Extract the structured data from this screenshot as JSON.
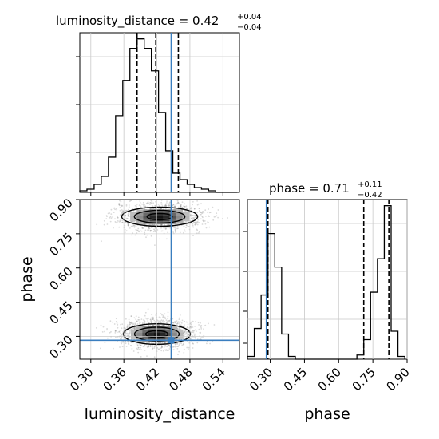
{
  "chart_data": {
    "type": "corner",
    "truth_color": "#3a7ebf",
    "grid": true,
    "parameters": [
      {
        "name": "luminosity_distance",
        "median": "0.42",
        "plus": "+0.04",
        "minus": "−0.04",
        "title_prefix": "luminosity_distance = ",
        "quantiles": [
          0.384,
          0.418,
          0.459
        ],
        "truth": 0.446,
        "range": [
          0.28,
          0.57
        ],
        "ticks": [
          "0.30",
          "0.36",
          "0.42",
          "0.48",
          "0.54"
        ],
        "hist_bins": [
          0.28,
          0.293,
          0.306,
          0.319,
          0.332,
          0.345,
          0.358,
          0.371,
          0.384,
          0.397,
          0.41,
          0.423,
          0.436,
          0.449,
          0.462,
          0.475,
          0.488,
          0.501,
          0.514,
          0.527,
          0.54,
          0.553,
          0.566
        ],
        "hist_counts": [
          1,
          2,
          5,
          10,
          22,
          48,
          70,
          90,
          96,
          90,
          76,
          50,
          26,
          12,
          8,
          5,
          3,
          2,
          1,
          0,
          0,
          0
        ]
      },
      {
        "name": "phase",
        "median": "0.71",
        "plus": "+0.11",
        "minus": "−0.42",
        "title_prefix": "phase = ",
        "quantiles": [
          0.29,
          0.71,
          0.82
        ],
        "truth": 0.283,
        "range": [
          0.2,
          0.9
        ],
        "ticks": [
          "0.30",
          "0.45",
          "0.60",
          "0.75",
          "0.90"
        ],
        "hist_bins": [
          0.2,
          0.23,
          0.26,
          0.29,
          0.32,
          0.35,
          0.38,
          0.41,
          0.44,
          0.47,
          0.5,
          0.53,
          0.56,
          0.59,
          0.62,
          0.65,
          0.68,
          0.71,
          0.74,
          0.77,
          0.8,
          0.83,
          0.86,
          0.89
        ],
        "hist_counts": [
          2,
          22,
          46,
          90,
          66,
          18,
          2,
          0,
          0,
          0,
          0,
          0,
          0,
          0,
          0,
          0,
          3,
          14,
          48,
          72,
          110,
          20,
          2
        ]
      }
    ],
    "posterior_clusters": [
      {
        "x": 0.425,
        "y": 0.825,
        "sx": 0.034,
        "sy": 0.028,
        "n": 1400
      },
      {
        "x": 0.42,
        "y": 0.31,
        "sx": 0.03,
        "sy": 0.03,
        "n": 1500
      }
    ],
    "contour_levels": [
      "0.5",
      "1.0",
      "1.5"
    ]
  }
}
